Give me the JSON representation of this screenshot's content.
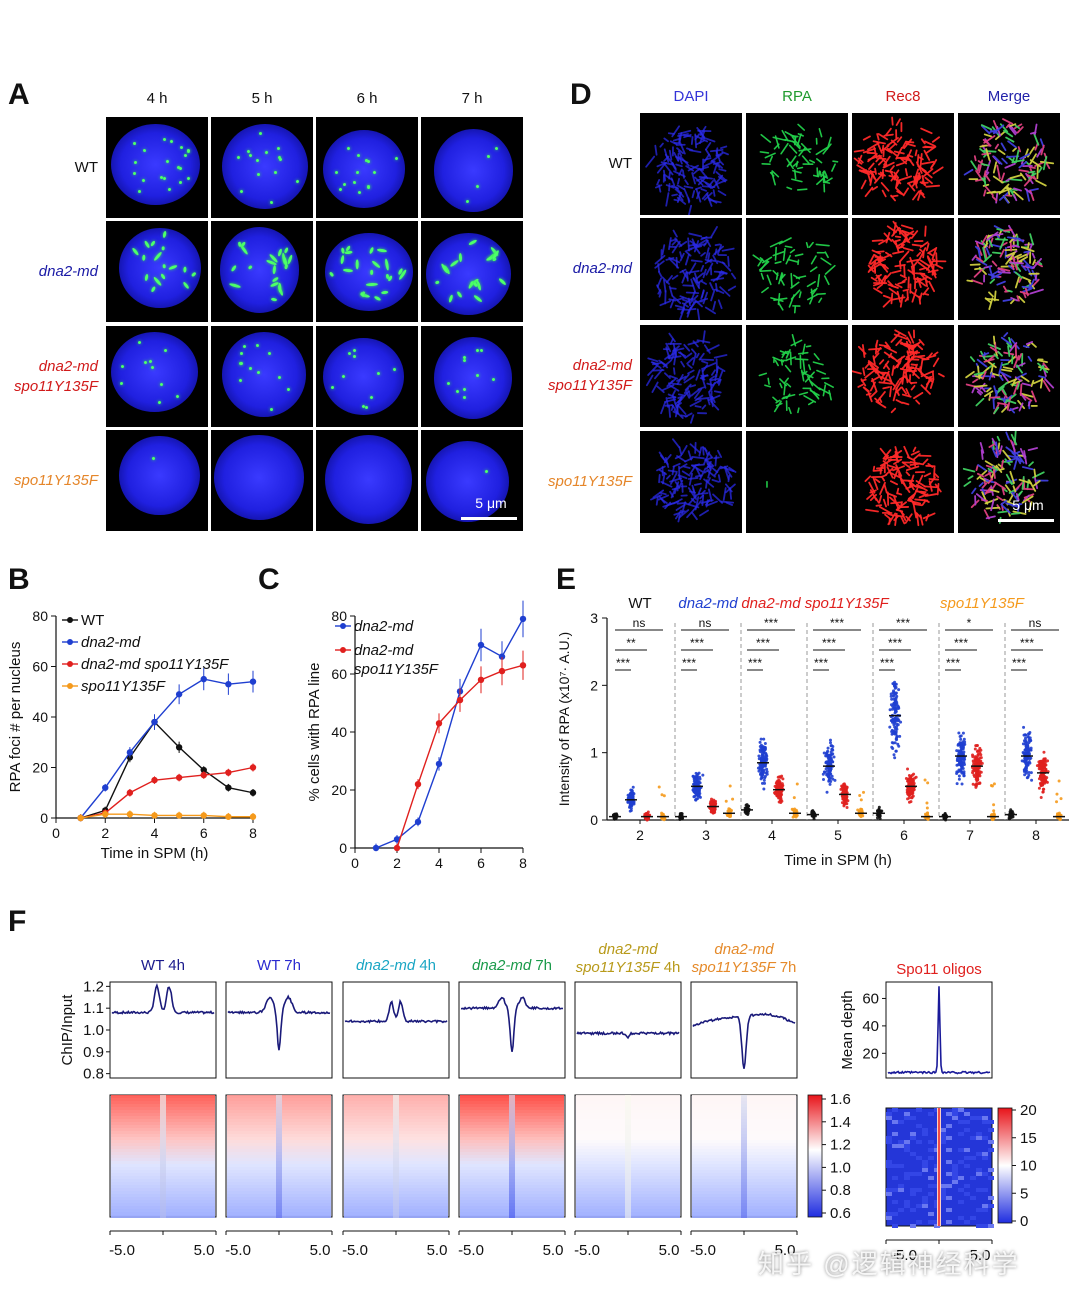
{
  "panel_labels": {
    "A": "A",
    "B": "B",
    "C": "C",
    "D": "D",
    "E": "E",
    "F": "F"
  },
  "panelA": {
    "columns": [
      "4 h",
      "5 h",
      "6 h",
      "7 h"
    ],
    "rows": [
      {
        "label": "WT",
        "color": "#111111",
        "italic": false
      },
      {
        "label": "dna2-md",
        "color": "#1a1aa6",
        "italic": true
      },
      {
        "label": "dna2-md",
        "label2": "spo11Y135F",
        "color": "#d11a1a",
        "italic": true
      },
      {
        "label": "spo11Y135F",
        "color": "#e5862a",
        "italic": true
      }
    ],
    "scalebar": "5 μm"
  },
  "panelD": {
    "columns": [
      {
        "label": "DAPI",
        "color": "#3434d8"
      },
      {
        "label": "RPA",
        "color": "#1f9a2e"
      },
      {
        "label": "Rec8",
        "color": "#d11a1a"
      },
      {
        "label": "Merge",
        "color": "#2222aa"
      }
    ],
    "rows": [
      {
        "label": "WT",
        "color": "#111111",
        "italic": false
      },
      {
        "label": "dna2-md",
        "color": "#1a1aa6",
        "italic": true
      },
      {
        "label": "dna2-md",
        "label2": "spo11Y135F",
        "color": "#d11a1a",
        "italic": true
      },
      {
        "label": "spo11Y135F",
        "color": "#e5862a",
        "italic": true
      }
    ],
    "scalebar": "5 μm"
  },
  "chart_data": [
    {
      "id": "B",
      "type": "line",
      "xlabel": "Time in SPM (h)",
      "ylabel": "RPA foci # per nucleus",
      "xlim": [
        0,
        8
      ],
      "ylim": [
        0,
        80
      ],
      "xticks": [
        0,
        2,
        4,
        6,
        8
      ],
      "yticks": [
        0,
        20,
        40,
        60,
        80
      ],
      "legend": "top-left",
      "series": [
        {
          "name": "WT",
          "color": "#111111",
          "x": [
            1,
            2,
            3,
            4,
            5,
            6,
            7,
            8
          ],
          "y": [
            0,
            3,
            24,
            38,
            28,
            19,
            12,
            10
          ]
        },
        {
          "name": "dna2-md",
          "color": "#1f3fd0",
          "x": [
            1,
            2,
            3,
            4,
            5,
            6,
            7,
            8
          ],
          "y": [
            0,
            12,
            26,
            38,
            49,
            55,
            53,
            54
          ]
        },
        {
          "name": "dna2-md  spo11Y135F",
          "color": "#e0201e",
          "x": [
            1,
            2,
            3,
            4,
            5,
            6,
            7,
            8
          ],
          "y": [
            0,
            2,
            10,
            15,
            16,
            17,
            18,
            20
          ]
        },
        {
          "name": "spo11Y135F",
          "color": "#f59a1c",
          "x": [
            1,
            2,
            3,
            4,
            5,
            6,
            7,
            8
          ],
          "y": [
            0,
            1.5,
            1.5,
            1,
            1,
            1,
            0.5,
            0.5
          ]
        }
      ]
    },
    {
      "id": "C",
      "type": "line",
      "xlabel": "Time in SPM (h)",
      "ylabel": "% cells with RPA line",
      "xlim": [
        0,
        8
      ],
      "ylim": [
        0,
        80
      ],
      "xticks": [
        0,
        2,
        4,
        6,
        8
      ],
      "yticks": [
        0,
        20,
        40,
        60,
        80
      ],
      "legend": "top-left",
      "series": [
        {
          "name": "dna2-md",
          "color": "#1f3fd0",
          "x": [
            1,
            2,
            3,
            4,
            5,
            6,
            7,
            8
          ],
          "y": [
            0,
            3,
            9,
            29,
            54,
            70,
            66,
            79
          ]
        },
        {
          "name": "dna2-md spo11Y135F",
          "color": "#e0201e",
          "x": [
            2,
            3,
            4,
            5,
            6,
            7,
            8
          ],
          "y": [
            0,
            22,
            43,
            51,
            58,
            61,
            63
          ]
        }
      ]
    },
    {
      "id": "E",
      "type": "scatter",
      "xlabel": "Time in SPM (h)",
      "ylabel": "Intensity of RPA (x10⁷· A.U.)",
      "ylim": [
        0,
        3
      ],
      "yticks": [
        0,
        1,
        2,
        3
      ],
      "categories": [
        "2",
        "3",
        "4",
        "5",
        "6",
        "7",
        "8"
      ],
      "groups": [
        {
          "name": "WT",
          "color": "#111111"
        },
        {
          "name": "dna2-md",
          "color": "#1f3fd0"
        },
        {
          "name": "dna2-md  spo11Y135F",
          "color": "#e0201e"
        },
        {
          "name": "spo11Y135F",
          "color": "#f59a1c"
        }
      ],
      "means": [
        [
          0.05,
          0.3,
          0.05,
          0.05
        ],
        [
          0.05,
          0.5,
          0.2,
          0.1
        ],
        [
          0.15,
          0.85,
          0.45,
          0.1
        ],
        [
          0.08,
          0.8,
          0.38,
          0.1
        ],
        [
          0.1,
          1.55,
          0.5,
          0.05
        ],
        [
          0.05,
          0.95,
          0.8,
          0.05
        ],
        [
          0.08,
          0.95,
          0.7,
          0.05
        ]
      ],
      "significance": [
        [
          "***",
          "**",
          "ns"
        ],
        [
          "***",
          "***",
          "ns"
        ],
        [
          "***",
          "***",
          "***"
        ],
        [
          "***",
          "***",
          "***"
        ],
        [
          "***",
          "***",
          "***"
        ],
        [
          "***",
          "***",
          "*"
        ],
        [
          "***",
          "***",
          "ns"
        ]
      ]
    }
  ],
  "panelF": {
    "profile_titles": [
      {
        "parts": [
          {
            "t": "WT 4h",
            "it": false
          }
        ],
        "color": "#1a1a8c"
      },
      {
        "parts": [
          {
            "t": "WT 7h",
            "it": false
          }
        ],
        "color": "#2a2ad0"
      },
      {
        "parts": [
          {
            "t": "dna2-md",
            "it": true
          },
          {
            "t": " 4h",
            "it": false
          }
        ],
        "color": "#1aa6c4"
      },
      {
        "parts": [
          {
            "t": "dna2-md",
            "it": true
          },
          {
            "t": " 7h",
            "it": false
          }
        ],
        "color": "#1a9a4a"
      },
      {
        "parts": [
          {
            "t": "dna2-md",
            "it": true
          },
          {
            "br": true
          },
          {
            "t": "spo11Y135F",
            "it": true
          },
          {
            "t": " 4h",
            "it": false
          }
        ],
        "color": "#b89a1a"
      },
      {
        "parts": [
          {
            "t": "dna2-md",
            "it": true
          },
          {
            "br": true
          },
          {
            "t": "spo11Y135F",
            "it": true
          },
          {
            "t": " 7h",
            "it": false
          }
        ],
        "color": "#e58a2a"
      }
    ],
    "profile_ylabel": "ChIP/Input",
    "profile_yticks": [
      "1.2",
      "1.1",
      "1.0",
      "0.9",
      "0.8"
    ],
    "profile_shapes": [
      "double-peak",
      "dip-peak",
      "double-peak-small",
      "peak-dip",
      "flat",
      "dip"
    ],
    "colorbar_ticks": [
      "1.6",
      "1.4",
      "1.2",
      "1.0",
      "0.8",
      "0.6"
    ],
    "xticks": [
      "-5.0",
      "0",
      "5.0"
    ],
    "spo11_title": "Spo11 oligos",
    "spo11_ylabel": "Mean depth",
    "spo11_yticks": [
      "60",
      "40",
      "20"
    ],
    "spo11_colorbar_ticks": [
      "20",
      "15",
      "10",
      "5",
      "0"
    ]
  },
  "watermark": "知乎 @逻辑神经科学"
}
